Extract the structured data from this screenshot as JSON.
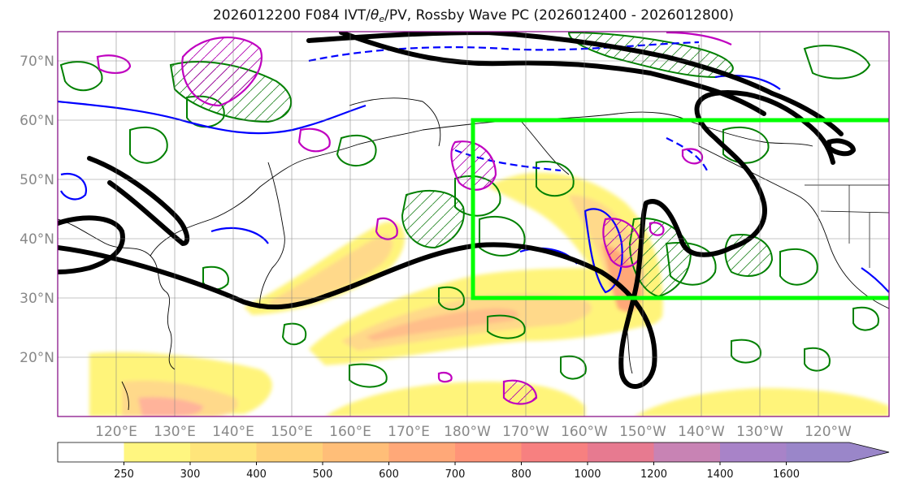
{
  "title": {
    "prefix": "2026012200 F084 IVT/",
    "theta_symbol": "θ",
    "theta_sub": "e",
    "suffix": "/PV, Rossby Wave PC (2026012400 - 2026012800)"
  },
  "map": {
    "lon_range": [
      110,
      252
    ],
    "lat_range": [
      10,
      75
    ],
    "lat_ticks": [
      {
        "value": 20,
        "label": "20°N"
      },
      {
        "value": 30,
        "label": "30°N"
      },
      {
        "value": 40,
        "label": "40°N"
      },
      {
        "value": 50,
        "label": "50°N"
      },
      {
        "value": 60,
        "label": "60°N"
      },
      {
        "value": 70,
        "label": "70°N"
      }
    ],
    "lon_ticks": [
      {
        "value": 120,
        "label": "120°E"
      },
      {
        "value": 130,
        "label": "130°E"
      },
      {
        "value": 140,
        "label": "140°E"
      },
      {
        "value": 150,
        "label": "150°E"
      },
      {
        "value": 160,
        "label": "160°E"
      },
      {
        "value": 170,
        "label": "170°E"
      },
      {
        "value": 180,
        "label": "180°W"
      },
      {
        "value": 190,
        "label": "170°W"
      },
      {
        "value": 200,
        "label": "160°W"
      },
      {
        "value": 210,
        "label": "150°W"
      },
      {
        "value": 220,
        "label": "140°W"
      },
      {
        "value": 230,
        "label": "130°W"
      },
      {
        "value": 240,
        "label": "120°W"
      }
    ],
    "highlight_box": {
      "lon": [
        180,
        252
      ],
      "lat": [
        30,
        60
      ],
      "color": "#00ff00"
    },
    "colors": {
      "pv_contour": "#000000",
      "theta_e": "#0000ff",
      "green_contour": "#008000",
      "magenta_contour": "#c000c0",
      "grid": "#808080"
    }
  },
  "colorbar": {
    "levels": [
      250,
      300,
      400,
      500,
      600,
      700,
      800,
      1000,
      1200,
      1400,
      1600
    ],
    "colors": [
      "#ffffff",
      "#fff680",
      "#ffe57a",
      "#ffd178",
      "#ffbe78",
      "#ffa878",
      "#ff9478",
      "#f78080",
      "#e77a90",
      "#c883b4",
      "#a883c8",
      "#9a86c9"
    ]
  }
}
